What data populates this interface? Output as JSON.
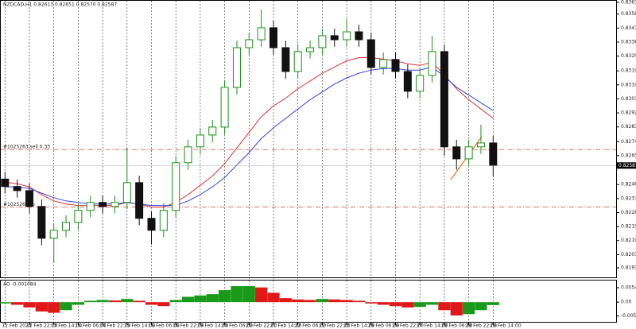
{
  "chart_data": [
    {
      "type": "candlestick",
      "title": "NZDCAD,H1  0.82613 0.82651 0.82570 0.82587",
      "x": [
        "12 Feb 2024",
        null,
        "12 Feb 22:00",
        null,
        "13 Feb 14:00",
        null,
        "14 Feb 06:00",
        null,
        "14 Feb 22:00",
        null,
        "15 Feb 14:00",
        null,
        "16 Feb 06:00",
        null,
        "16 Feb 22:00",
        null,
        "19 Feb 14:00",
        null,
        "20 Feb 06:00",
        null,
        "20 Feb 22:00",
        null,
        "21 Feb 14:00",
        null,
        "22 Feb 06:00",
        null,
        "22 Feb 22:00",
        null,
        "23 Feb 14:00",
        null,
        "26 Feb 06:00",
        null,
        "26 Feb 22:00",
        null,
        "27 Feb 14:00",
        null,
        "28 Feb 06:00",
        null,
        "28 Feb 22:00",
        null,
        "29 Feb 14:00"
      ],
      "open": [
        0.825,
        0.82452,
        0.82426,
        0.82324,
        0.8212,
        0.82171,
        0.82222,
        0.82299,
        0.8235,
        0.82324,
        0.8235,
        0.82477,
        0.82248,
        0.82171,
        0.82299,
        0.82605,
        0.82707,
        0.82783,
        0.82834,
        0.83089,
        0.83344,
        0.83395,
        0.83472,
        0.83344,
        0.83191,
        0.83319,
        0.83344,
        0.83421,
        0.83395,
        0.83446,
        0.83395,
        0.83217,
        0.83268,
        0.83191,
        0.83064,
        0.83166,
        0.83319,
        0.82707,
        0.8263,
        0.82707,
        0.82732
      ],
      "high": [
        0.82545,
        0.82497,
        0.82471,
        0.82369,
        0.82216,
        0.82267,
        0.82344,
        0.82395,
        0.82395,
        0.82395,
        0.827,
        0.82522,
        0.82293,
        0.82344,
        0.8265,
        0.82752,
        0.82828,
        0.82879,
        0.83134,
        0.83389,
        0.8344,
        0.8359,
        0.83517,
        0.83389,
        0.83364,
        0.83389,
        0.83466,
        0.83466,
        0.8353,
        0.83491,
        0.8344,
        0.83313,
        0.83313,
        0.83236,
        0.83211,
        0.8342,
        0.83364,
        0.82752,
        0.82752,
        0.8285,
        0.82777
      ],
      "low": [
        0.82407,
        0.82381,
        0.82279,
        0.82075,
        0.8196,
        0.82126,
        0.82177,
        0.82254,
        0.82279,
        0.82279,
        0.82305,
        0.82203,
        0.8208,
        0.82126,
        0.82254,
        0.8256,
        0.82662,
        0.82738,
        0.82789,
        0.83044,
        0.83299,
        0.8335,
        0.83299,
        0.83146,
        0.83146,
        0.83274,
        0.83299,
        0.8335,
        0.8335,
        0.8335,
        0.83172,
        0.83172,
        0.83146,
        0.83019,
        0.83019,
        0.83121,
        0.8265,
        0.8256,
        0.82585,
        0.82662,
        0.8252
      ],
      "close": [
        0.82452,
        0.82426,
        0.82324,
        0.8212,
        0.82171,
        0.82222,
        0.82299,
        0.8235,
        0.82324,
        0.8235,
        0.82477,
        0.82248,
        0.82171,
        0.82299,
        0.82605,
        0.82707,
        0.82783,
        0.82834,
        0.83089,
        0.83344,
        0.83395,
        0.83472,
        0.83344,
        0.83191,
        0.83319,
        0.83344,
        0.83421,
        0.83395,
        0.83446,
        0.83395,
        0.83217,
        0.83268,
        0.83191,
        0.83064,
        0.83166,
        0.83319,
        0.82707,
        0.8263,
        0.82707,
        0.82732,
        0.82587
      ],
      "up_color": "#1a8f1a",
      "down_color": "#111111",
      "series": [
        {
          "color": "#e03030",
          "values": [
            0.8248,
            0.8247,
            0.8245,
            0.824,
            0.8236,
            0.8234,
            0.8233,
            0.8233,
            0.8233,
            0.8233,
            0.8235,
            0.8234,
            0.8232,
            0.8232,
            0.8235,
            0.824,
            0.8246,
            0.8252,
            0.826,
            0.827,
            0.828,
            0.829,
            0.8297,
            0.8302,
            0.8308,
            0.8313,
            0.8318,
            0.8322,
            0.8326,
            0.8328,
            0.8328,
            0.8327,
            0.8326,
            0.8324,
            0.8323,
            0.8325,
            0.8317,
            0.8308,
            0.8301,
            0.8295,
            0.8289
          ]
        },
        {
          "color": "#3344dd",
          "values": [
            0.8245,
            0.8245,
            0.8244,
            0.8241,
            0.8238,
            0.8236,
            0.8235,
            0.8234,
            0.8234,
            0.8234,
            0.8235,
            0.8234,
            0.8233,
            0.8233,
            0.8233,
            0.8236,
            0.824,
            0.8245,
            0.8251,
            0.8259,
            0.8267,
            0.8276,
            0.8283,
            0.8289,
            0.8295,
            0.8301,
            0.8306,
            0.8311,
            0.8315,
            0.8318,
            0.832,
            0.8321,
            0.8321,
            0.832,
            0.832,
            0.8322,
            0.8316,
            0.8309,
            0.8304,
            0.8299,
            0.8294
          ]
        }
      ],
      "levels": [
        {
          "label": "#1025263 sell 0.33",
          "value": 0.8269,
          "color": "#d04040"
        },
        {
          "label": "#1025263 tp",
          "value": 0.8232,
          "color": "#d04040"
        }
      ],
      "ylim": [
        0.8193,
        0.83635
      ],
      "yticks": [
        0.83635,
        {
          "value": 0.8356,
          "label": "0.83560"
        },
        {
          "value": 0.8347,
          "label": "0.83470"
        },
        {
          "value": 0.8338,
          "label": "0.83380"
        },
        {
          "value": 0.8329,
          "label": "0.83290"
        },
        0.83195,
        0.83105,
        0.83015,
        0.82925,
        0.82835,
        {
          "value": 0.8274,
          "label": "0.82740"
        },
        {
          "value": 0.8265,
          "label": "0.82650"
        },
        0.82465,
        0.82375,
        0.82285,
        0.82195,
        0.82105,
        0.82015,
        {
          "value": 0.8193,
          "label": "0.81930"
        }
      ]
    },
    {
      "type": "histogram",
      "title": "AO -0.001084",
      "values": [
        -0.0005,
        -0.001,
        -0.002,
        -0.0035,
        -0.004,
        -0.003,
        -0.001,
        0.0005,
        0.0008,
        0.0006,
        0.0012,
        0.0005,
        -0.001,
        -0.0015,
        0.0008,
        0.002,
        0.0025,
        0.003,
        0.0045,
        0.006,
        0.006,
        0.0055,
        0.0035,
        0.0015,
        0.001,
        0.0008,
        0.0012,
        0.001,
        0.0008,
        0.0005,
        -0.0005,
        -0.001,
        -0.0015,
        -0.002,
        -0.0018,
        -0.001,
        -0.003,
        -0.005,
        -0.0045,
        -0.003,
        -0.0011
      ],
      "up_color": "#1a9a1a",
      "down_color": "#e01818",
      "ylim": [
        -0.0074,
        0.0081
      ],
      "yticks": [
        0.005406,
        {
          "value": 0,
          "label": "0.00"
        },
        -0.005187
      ]
    }
  ]
}
